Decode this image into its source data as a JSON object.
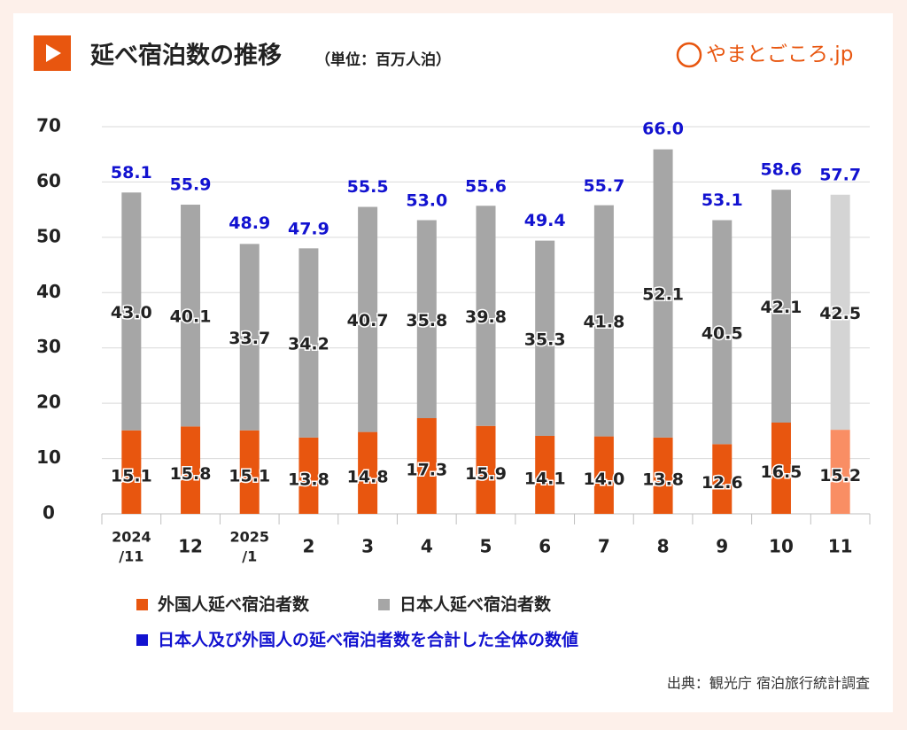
{
  "header": {
    "title": "延べ宿泊数の推移",
    "subtitle": "（単位：百万人泊）",
    "logo": "やまとごころ.jp"
  },
  "chart_data": {
    "type": "stacked_bar",
    "categories": [
      [
        "2024",
        "/11"
      ],
      "12",
      [
        "2025",
        "/1"
      ],
      "2",
      "3",
      "4",
      "5",
      "6",
      "7",
      "8",
      "9",
      "10",
      "11"
    ],
    "series": [
      {
        "name": "外国人延べ宿泊者数",
        "color": "#e8560f",
        "colors": [
          "#e8560f",
          "#e8560f",
          "#e8560f",
          "#e8560f",
          "#e8560f",
          "#e8560f",
          "#e8560f",
          "#e8560f",
          "#e8560f",
          "#e8560f",
          "#e8560f",
          "#e8560f",
          "#f98e64"
        ],
        "values": [
          15.1,
          15.8,
          15.1,
          13.8,
          14.8,
          17.3,
          15.9,
          14.1,
          14.0,
          13.8,
          12.6,
          16.5,
          15.2
        ],
        "value_labels": [
          "15.1",
          "15.8",
          "15.1",
          "13.8",
          "14.8",
          "17.3",
          "15.9",
          "14.1",
          "14.0",
          "13.8",
          "12.6",
          "16.5",
          "15.2"
        ]
      },
      {
        "name": "日本人延べ宿泊者数",
        "color": "#a6a6a6",
        "colors": [
          "#a6a6a6",
          "#a6a6a6",
          "#a6a6a6",
          "#a6a6a6",
          "#a6a6a6",
          "#a6a6a6",
          "#a6a6a6",
          "#a6a6a6",
          "#a6a6a6",
          "#a6a6a6",
          "#a6a6a6",
          "#a6a6a6",
          "#d4d4d4"
        ],
        "values": [
          43.0,
          40.1,
          33.7,
          34.2,
          40.7,
          35.8,
          39.8,
          35.3,
          41.8,
          52.1,
          40.5,
          42.1,
          42.5
        ],
        "value_labels": [
          "43.0",
          "40.1",
          "33.7",
          "34.2",
          "40.7",
          "35.8",
          "39.8",
          "35.3",
          "41.8",
          "52.1",
          "40.5",
          "42.1",
          "42.5"
        ]
      }
    ],
    "totals": {
      "name": "日本人及び外国人の延べ宿泊者数を合計した全体の数値",
      "color": "#1212d0",
      "values": [
        58.1,
        55.9,
        48.9,
        47.9,
        55.5,
        53.0,
        55.6,
        49.4,
        55.7,
        66.0,
        53.1,
        58.6,
        57.7
      ],
      "value_labels": [
        "58.1",
        "55.9",
        "48.9",
        "47.9",
        "55.5",
        "53.0",
        "55.6",
        "49.4",
        "55.7",
        "66.0",
        "53.1",
        "58.6",
        "57.7"
      ]
    },
    "ylim": [
      0,
      70
    ],
    "yticks": [
      0,
      10,
      20,
      30,
      40,
      50,
      60,
      70
    ],
    "grid": true,
    "source": "出典：観光庁 宿泊旅行統計調査"
  }
}
